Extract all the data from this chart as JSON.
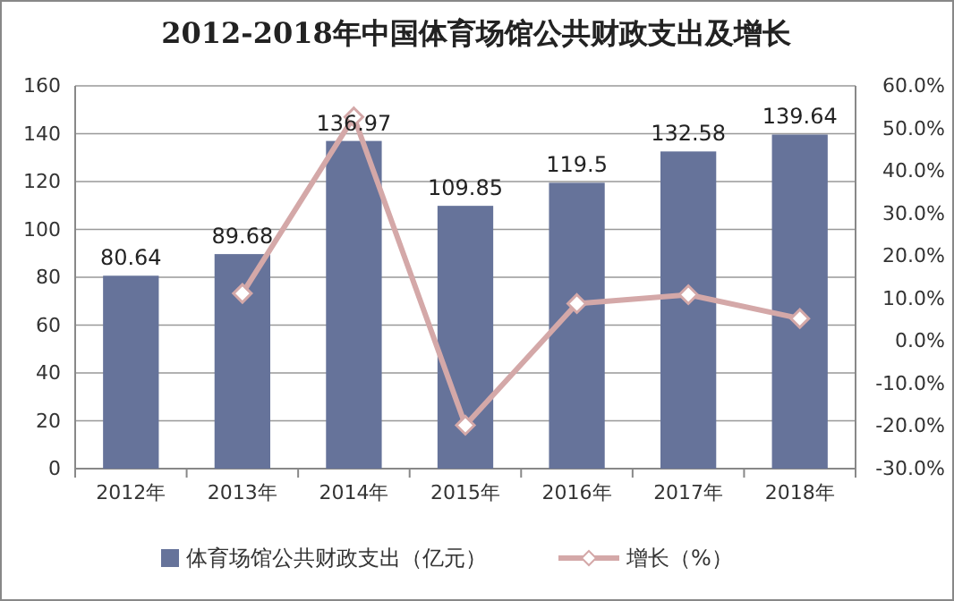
{
  "chart_data": {
    "type": "bar",
    "title": "2012-2018年中国体育场馆公共财政支出及增长",
    "categories": [
      "2012年",
      "2013年",
      "2014年",
      "2015年",
      "2016年",
      "2017年",
      "2018年"
    ],
    "series": [
      {
        "name": "体育场馆公共财政支出（亿元）",
        "color": "#66739a",
        "values": [
          80.64,
          89.68,
          136.97,
          109.85,
          119.5,
          132.58,
          139.64
        ],
        "value_labels": [
          "80.64",
          "89.68",
          "136.97",
          "109.85",
          "119.5",
          "132.58",
          "139.64"
        ]
      },
      {
        "name": "增长（%）",
        "type": "line",
        "axis": "y2",
        "color": "#d4a8a8",
        "marker": "diamond",
        "values": [
          null,
          11.2,
          52.7,
          -19.8,
          8.8,
          10.9,
          5.3
        ]
      }
    ],
    "ylim": [
      0,
      160
    ],
    "yticks": [
      0,
      20,
      40,
      60,
      80,
      100,
      120,
      140,
      160
    ],
    "y2lim": [
      -30,
      60
    ],
    "y2ticks": [
      {
        "value": -30,
        "label": "-30.0%"
      },
      {
        "value": -20,
        "label": "-20.0%"
      },
      {
        "value": -10,
        "label": "-10.0%"
      },
      {
        "value": 0,
        "label": "0.0%"
      },
      {
        "value": 10,
        "label": "10.0%"
      },
      {
        "value": 20,
        "label": "20.0%"
      },
      {
        "value": 30,
        "label": "30.0%"
      },
      {
        "value": 40,
        "label": "40.0%"
      },
      {
        "value": 50,
        "label": "50.0%"
      },
      {
        "value": 60,
        "label": "60.0%"
      }
    ],
    "grid": "y",
    "legend": "bottom"
  }
}
